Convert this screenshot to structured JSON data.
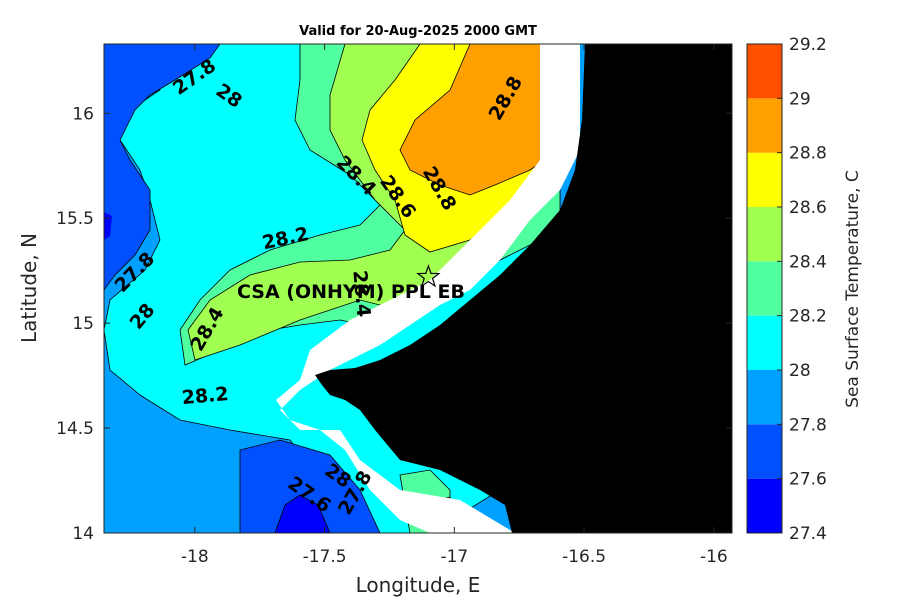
{
  "title": "Valid for 20-Aug-2025 2000 GMT",
  "map": {
    "xlabel": "Longitude, E",
    "ylabel": "Latitude, N",
    "x_range": [
      -18.35,
      -15.93
    ],
    "y_range": [
      14.0,
      16.33
    ],
    "x_ticks": [
      "-18",
      "-17.5",
      "-17",
      "-16.5",
      "-16"
    ],
    "y_ticks": [
      "14",
      "14.5",
      "15",
      "15.5",
      "16"
    ],
    "land_color": "#000000",
    "station": {
      "name": "CSA (ONHYM) PPL EB",
      "lon": -17.1,
      "lat": 15.22,
      "marker": "star-icon"
    }
  },
  "colorbar": {
    "title": "Sea Surface Temperature, C",
    "levels": [
      "27.4",
      "27.6",
      "27.8",
      "28",
      "28.2",
      "28.4",
      "28.6",
      "28.8",
      "29",
      "29.2"
    ],
    "colors": [
      "#0000ff",
      "#0050ff",
      "#00a0ff",
      "#00ffff",
      "#50ffa0",
      "#a0ff50",
      "#ffff00",
      "#ffa000",
      "#ff5000"
    ]
  },
  "chart_data": {
    "type": "heatmap",
    "title": "Valid for 20-Aug-2025 2000 GMT",
    "xlabel": "Longitude, E",
    "ylabel": "Latitude, N",
    "xlim": [
      -18.35,
      -15.93
    ],
    "ylim": [
      14.0,
      16.33
    ],
    "color_range": [
      27.4,
      29.2
    ],
    "contour_labels": [
      {
        "text": "27.8",
        "lon": -18.0,
        "lat": 16.17
      },
      {
        "text": "28",
        "lon": -17.87,
        "lat": 16.08
      },
      {
        "text": "28.4",
        "lon": -17.38,
        "lat": 15.7
      },
      {
        "text": "28.6",
        "lon": -17.22,
        "lat": 15.6
      },
      {
        "text": "28.8",
        "lon": -17.06,
        "lat": 15.64
      },
      {
        "text": "28.8",
        "lon": -16.8,
        "lat": 16.07
      },
      {
        "text": "28.2",
        "lon": -17.65,
        "lat": 15.4
      },
      {
        "text": "27.8",
        "lon": -18.23,
        "lat": 15.24
      },
      {
        "text": "28",
        "lon": -18.2,
        "lat": 15.03
      },
      {
        "text": "28.4",
        "lon": -17.95,
        "lat": 14.97
      },
      {
        "text": "28.4",
        "lon": -17.36,
        "lat": 15.14
      },
      {
        "text": "28.2",
        "lon": -17.96,
        "lat": 14.65
      },
      {
        "text": "28",
        "lon": -17.45,
        "lat": 14.27
      },
      {
        "text": "27.6",
        "lon": -17.56,
        "lat": 14.18
      },
      {
        "text": "27.8",
        "lon": -17.38,
        "lat": 14.19
      }
    ]
  }
}
